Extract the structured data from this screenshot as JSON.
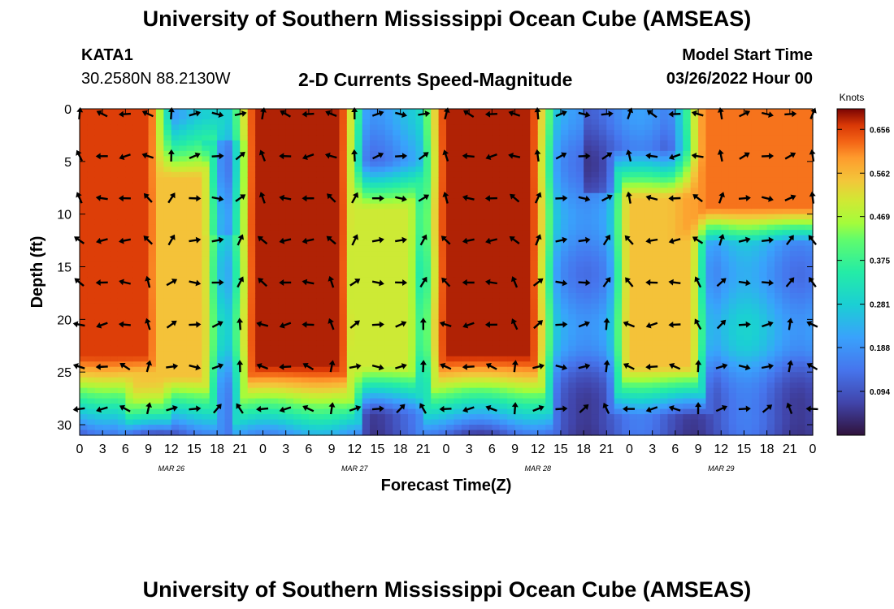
{
  "page": {
    "title": "University of Southern Mississippi Ocean Cube (AMSEAS)",
    "station_id": "KATA1",
    "station_coords": "30.2580N  88.2130W",
    "plot_title": "2-D Currents Speed-Magnitude",
    "model_start_label": "Model Start Time",
    "model_start_value": "03/26/2022 Hour 00",
    "footer_title": "University of Southern Mississippi Ocean Cube (AMSEAS)"
  },
  "chart_data": {
    "type": "heatmap",
    "title": "2-D Currents Speed-Magnitude",
    "xlabel": "Forecast Time(Z)",
    "ylabel": "Depth (ft)",
    "xlim": [
      0,
      96
    ],
    "ylim": [
      31,
      0
    ],
    "x_tick_values": [
      0,
      3,
      6,
      9,
      12,
      15,
      18,
      21,
      24,
      27,
      30,
      33,
      36,
      39,
      42,
      45,
      48,
      51,
      54,
      57,
      60,
      63,
      66,
      69,
      72,
      75,
      78,
      81,
      84,
      87,
      90,
      93,
      96
    ],
    "x_tick_labels": [
      "0",
      "3",
      "6",
      "9",
      "12",
      "15",
      "18",
      "21",
      "0",
      "3",
      "6",
      "9",
      "12",
      "15",
      "18",
      "21",
      "0",
      "3",
      "6",
      "9",
      "12",
      "15",
      "18",
      "21",
      "0",
      "3",
      "6",
      "9",
      "12",
      "15",
      "18",
      "21",
      "0"
    ],
    "y_ticks": [
      0,
      5,
      10,
      15,
      20,
      25,
      30
    ],
    "y_tick_labels": [
      "0",
      "5",
      "10",
      "15",
      "20",
      "25",
      "30"
    ],
    "date_labels": [
      {
        "text": "MAR 26",
        "x": 12
      },
      {
        "text": "MAR 27",
        "x": 36
      },
      {
        "text": "MAR 28",
        "x": 60
      },
      {
        "text": "MAR 29",
        "x": 84
      }
    ],
    "colorbar": {
      "unit": "Knots",
      "vmin": 0.0,
      "vmax": 0.7,
      "tick_values": [
        0.656,
        0.562,
        0.469,
        0.375,
        0.281,
        0.188,
        0.094
      ],
      "tick_labels": [
        "0.656",
        "0.562",
        "0.469",
        "0.375",
        "0.281",
        "0.188",
        "0.094"
      ]
    },
    "arrow_depths": [
      0.5,
      4.5,
      8.5,
      12.5,
      16.5,
      20.5,
      24.5,
      28.5
    ],
    "arrow_times": [
      0,
      3,
      6,
      9,
      12,
      15,
      18,
      21,
      24,
      27,
      30,
      33,
      36,
      39,
      42,
      45,
      48,
      51,
      54,
      57,
      60,
      63,
      66,
      69,
      72,
      75,
      78,
      81,
      84,
      87,
      90,
      93,
      96
    ],
    "speed_field_description": "approximate speed in knots at key (time, depth)",
    "bands": [
      {
        "t0": 0,
        "t1": 8,
        "d0": 0,
        "d1": 22,
        "speed": 0.66
      },
      {
        "t0": 9,
        "t1": 15,
        "d0": 8,
        "d1": 24,
        "speed": 0.55
      },
      {
        "t0": 24,
        "t1": 33,
        "d0": 0,
        "d1": 23,
        "speed": 0.68
      },
      {
        "t0": 37,
        "t1": 42,
        "d0": 11,
        "d1": 23,
        "speed": 0.5
      },
      {
        "t0": 49,
        "t1": 58,
        "d0": 0,
        "d1": 22,
        "speed": 0.68
      },
      {
        "t0": 73,
        "t1": 79,
        "d0": 10,
        "d1": 23,
        "speed": 0.55
      },
      {
        "t0": 83,
        "t1": 96,
        "d0": 0,
        "d1": 8,
        "speed": 0.62
      }
    ]
  }
}
